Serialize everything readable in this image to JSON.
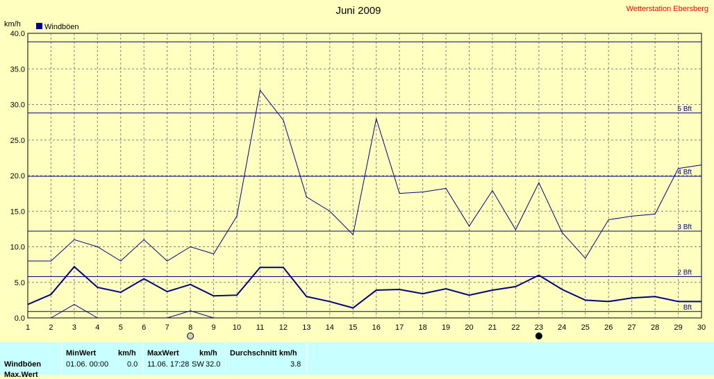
{
  "station": "Wetterstation Ebersberg",
  "chart_data": {
    "type": "line",
    "title": "Juni 2009",
    "ylabel": "km/h",
    "ylim": [
      0,
      40
    ],
    "yticks": [
      "0.0",
      "5.0",
      "10.0",
      "15.0",
      "20.0",
      "25.0",
      "30.0",
      "35.0",
      "40.0"
    ],
    "x": [
      1,
      2,
      3,
      4,
      5,
      6,
      7,
      8,
      9,
      10,
      11,
      12,
      13,
      14,
      15,
      16,
      17,
      18,
      19,
      20,
      21,
      22,
      23,
      24,
      25,
      26,
      27,
      28,
      29,
      30
    ],
    "xlim": [
      1,
      30
    ],
    "grid": true,
    "legend": "top-left",
    "legend_entries": [
      "Windböen"
    ],
    "colors": {
      "series": "#000080",
      "grid": "#808080",
      "background": "#ffffc0",
      "station": "#ff0000"
    },
    "series": [
      {
        "name": "Windböen",
        "values": [
          1.9,
          3.3,
          7.2,
          4.3,
          3.6,
          5.5,
          3.7,
          4.7,
          3.1,
          3.2,
          7.1,
          7.1,
          3.0,
          2.3,
          1.4,
          3.9,
          4.0,
          3.4,
          4.1,
          3.2,
          3.9,
          4.4,
          6.0,
          4.0,
          2.5,
          2.3,
          2.8,
          3.0,
          2.3,
          2.3
        ]
      },
      {
        "values": [
          8.0,
          8.0,
          11.0,
          10.0,
          8.0,
          11.0,
          8.0,
          10.0,
          9.0,
          14.3,
          32.0,
          27.8,
          17.0,
          15.0,
          11.7,
          28.0,
          17.5,
          17.7,
          18.2,
          12.9,
          17.9,
          12.4,
          19.0,
          12.0,
          8.4,
          13.8,
          14.3,
          14.6,
          21.0,
          21.5
        ]
      },
      {
        "values": [
          null,
          0.0,
          1.9,
          0.0,
          null,
          null,
          0.0,
          1.0,
          0.0,
          null,
          null,
          null,
          null,
          null,
          null,
          null,
          null,
          null,
          null,
          null,
          null,
          null,
          null,
          null,
          null,
          null,
          null,
          null,
          null,
          null
        ]
      }
    ],
    "reference_lines": [
      {
        "value": 0.9,
        "label": "Bft"
      },
      {
        "value": 5.8,
        "label": "2 Bft"
      },
      {
        "value": 12.2,
        "label": "3 Bft"
      },
      {
        "value": 19.9,
        "label": "4 Bft"
      },
      {
        "value": 28.8,
        "label": "5 Bft"
      },
      {
        "value": 38.8,
        "label": ""
      }
    ],
    "markers": [
      {
        "x": 8,
        "style": "open"
      },
      {
        "x": 23,
        "style": "filled"
      }
    ]
  },
  "stats": {
    "row_label": "Windböen",
    "row2_label": "Max.Wert",
    "headers": {
      "min": "MinWert",
      "min_unit": "km/h",
      "max": "MaxWert",
      "max_unit": "km/h",
      "avg": "Durchschnitt km/h"
    },
    "min_date": "01.06.  00:00",
    "min_value": "0.0",
    "max_date": "11.06.  17:28",
    "max_dir": "SW",
    "max_value": "32.0",
    "avg_value": "3.8"
  }
}
